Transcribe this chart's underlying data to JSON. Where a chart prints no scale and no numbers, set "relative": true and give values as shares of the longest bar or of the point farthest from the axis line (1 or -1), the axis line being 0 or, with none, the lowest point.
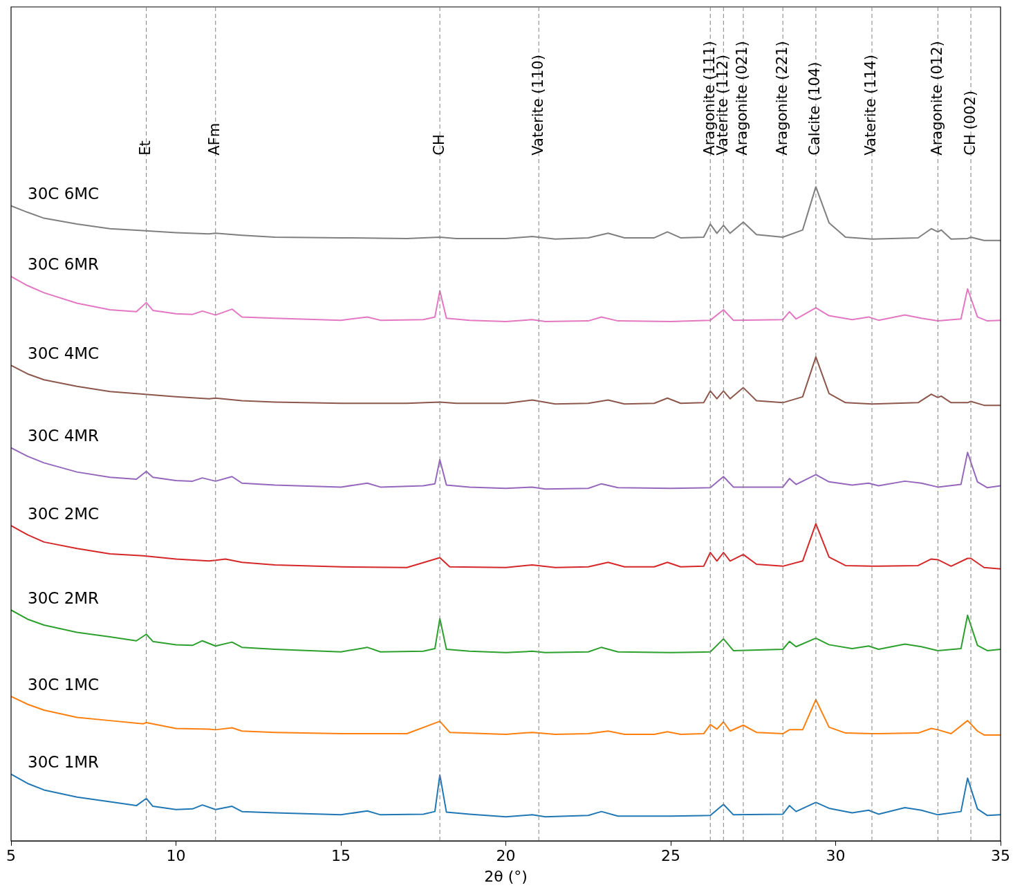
{
  "chart_data": {
    "type": "line",
    "relative": true,
    "xlabel": "2θ (°)",
    "xlim": [
      5,
      35
    ],
    "xticks": [
      5,
      10,
      15,
      20,
      25,
      30,
      35
    ],
    "legend": false,
    "line_style": "solid",
    "series": [
      {
        "name": "30C 1MR",
        "color": "#1f77b4",
        "x": [
          5,
          5.5,
          6,
          7,
          8,
          8.8,
          9.1,
          9.3,
          10,
          10.5,
          10.8,
          11.2,
          11.7,
          12,
          13,
          15,
          15.8,
          16.2,
          17.5,
          17.85,
          18.0,
          18.2,
          18.9,
          20,
          20.8,
          21.2,
          22.5,
          22.9,
          23.4,
          25,
          26.2,
          26.6,
          26.9,
          28.4,
          28.6,
          28.8,
          29.4,
          29.8,
          30.5,
          31.0,
          31.3,
          32.1,
          32.6,
          33.1,
          33.8,
          34.0,
          34.3,
          34.6,
          35
        ],
        "values": [
          0.102,
          0.088,
          0.078,
          0.067,
          0.06,
          0.054,
          0.065,
          0.053,
          0.048,
          0.049,
          0.055,
          0.048,
          0.053,
          0.045,
          0.043,
          0.04,
          0.046,
          0.04,
          0.041,
          0.045,
          0.101,
          0.044,
          0.041,
          0.037,
          0.04,
          0.037,
          0.039,
          0.045,
          0.038,
          0.038,
          0.039,
          0.056,
          0.04,
          0.041,
          0.054,
          0.045,
          0.059,
          0.05,
          0.043,
          0.047,
          0.041,
          0.051,
          0.047,
          0.04,
          0.045,
          0.096,
          0.049,
          0.039,
          0.04
        ]
      },
      {
        "name": "30C 1MC",
        "color": "#ff7f0e",
        "x": [
          5,
          5.5,
          6,
          7,
          8,
          9,
          9.1,
          10,
          11,
          11.2,
          11.7,
          12,
          13,
          15,
          17,
          18,
          18.3,
          20,
          20.8,
          21.5,
          22.5,
          23.1,
          23.6,
          24.5,
          24.9,
          25.3,
          26,
          26.2,
          26.4,
          26.6,
          26.8,
          27.2,
          27.6,
          28.4,
          28.6,
          29.0,
          29.4,
          29.8,
          30.3,
          31.1,
          32.5,
          32.9,
          33.1,
          33.5,
          34.0,
          34.3,
          34.5,
          35
        ],
        "values": [
          0.221,
          0.209,
          0.2,
          0.189,
          0.184,
          0.179,
          0.181,
          0.172,
          0.171,
          0.17,
          0.173,
          0.168,
          0.166,
          0.164,
          0.164,
          0.183,
          0.166,
          0.163,
          0.166,
          0.163,
          0.164,
          0.168,
          0.163,
          0.163,
          0.167,
          0.163,
          0.164,
          0.178,
          0.171,
          0.182,
          0.168,
          0.177,
          0.166,
          0.164,
          0.17,
          0.17,
          0.216,
          0.174,
          0.165,
          0.164,
          0.165,
          0.172,
          0.17,
          0.164,
          0.184,
          0.168,
          0.162,
          0.162
        ]
      },
      {
        "name": "30C 2MR",
        "color": "#2ca02c",
        "x": [
          5,
          5.5,
          6,
          7,
          8,
          8.8,
          9.1,
          9.3,
          10,
          10.5,
          10.8,
          11.2,
          11.7,
          12,
          13,
          15,
          15.8,
          16.2,
          17.5,
          17.85,
          18.0,
          18.2,
          18.9,
          20,
          20.8,
          21.2,
          22.5,
          22.9,
          23.4,
          25,
          26.2,
          26.6,
          26.9,
          28.4,
          28.6,
          28.8,
          29.4,
          29.8,
          30.5,
          31.0,
          31.3,
          32.1,
          32.6,
          33.1,
          33.8,
          34.0,
          34.3,
          34.6,
          35
        ],
        "values": [
          0.353,
          0.339,
          0.33,
          0.319,
          0.312,
          0.306,
          0.316,
          0.305,
          0.3,
          0.299,
          0.306,
          0.298,
          0.304,
          0.296,
          0.293,
          0.289,
          0.296,
          0.289,
          0.29,
          0.294,
          0.34,
          0.293,
          0.29,
          0.288,
          0.29,
          0.288,
          0.289,
          0.296,
          0.289,
          0.288,
          0.289,
          0.309,
          0.291,
          0.293,
          0.305,
          0.297,
          0.31,
          0.3,
          0.294,
          0.298,
          0.293,
          0.301,
          0.297,
          0.291,
          0.294,
          0.345,
          0.299,
          0.291,
          0.293
        ]
      },
      {
        "name": "30C 2MC",
        "color": "#d62728",
        "x": [
          5,
          5.5,
          6,
          7,
          8,
          9,
          10,
          11,
          11.2,
          11.5,
          12,
          13,
          15,
          17,
          18,
          18.3,
          20,
          20.8,
          21.5,
          22.5,
          23.1,
          23.6,
          24.5,
          24.9,
          25.3,
          26,
          26.2,
          26.4,
          26.6,
          26.8,
          27.2,
          27.6,
          28.4,
          29.0,
          29.4,
          29.8,
          30.3,
          31.1,
          32.5,
          32.9,
          33.1,
          33.5,
          34.0,
          34.1,
          34.5,
          35
        ],
        "values": [
          0.482,
          0.468,
          0.457,
          0.447,
          0.439,
          0.436,
          0.431,
          0.428,
          0.429,
          0.431,
          0.426,
          0.422,
          0.419,
          0.418,
          0.433,
          0.419,
          0.418,
          0.422,
          0.418,
          0.419,
          0.426,
          0.419,
          0.419,
          0.426,
          0.419,
          0.42,
          0.441,
          0.428,
          0.441,
          0.428,
          0.438,
          0.423,
          0.42,
          0.428,
          0.485,
          0.434,
          0.421,
          0.42,
          0.421,
          0.431,
          0.43,
          0.42,
          0.432,
          0.432,
          0.418,
          0.416
        ]
      },
      {
        "name": "30C 4MR",
        "color": "#9467bd",
        "x": [
          5,
          5.5,
          6,
          7,
          8,
          8.8,
          9.1,
          9.3,
          10,
          10.5,
          10.8,
          11.2,
          11.7,
          12,
          13,
          15,
          15.8,
          16.2,
          17.5,
          17.85,
          18.0,
          18.2,
          18.9,
          20,
          20.8,
          21.2,
          22.5,
          22.9,
          23.4,
          25,
          26.2,
          26.6,
          26.9,
          28.4,
          28.6,
          28.8,
          29.4,
          29.8,
          30.5,
          31.0,
          31.3,
          32.1,
          32.6,
          33.1,
          33.8,
          34.0,
          34.3,
          34.6,
          35
        ],
        "values": [
          0.601,
          0.588,
          0.578,
          0.564,
          0.556,
          0.553,
          0.565,
          0.556,
          0.551,
          0.55,
          0.555,
          0.55,
          0.557,
          0.547,
          0.544,
          0.541,
          0.547,
          0.541,
          0.543,
          0.546,
          0.583,
          0.544,
          0.541,
          0.539,
          0.541,
          0.538,
          0.539,
          0.546,
          0.54,
          0.539,
          0.54,
          0.557,
          0.541,
          0.541,
          0.554,
          0.545,
          0.56,
          0.549,
          0.544,
          0.547,
          0.543,
          0.55,
          0.547,
          0.541,
          0.545,
          0.594,
          0.549,
          0.54,
          0.543
        ]
      },
      {
        "name": "30C 4MC",
        "color": "#8c564b",
        "x": [
          5,
          5.5,
          6,
          7,
          8,
          9,
          10,
          11,
          11.2,
          12,
          13,
          15,
          17,
          18,
          18.5,
          20,
          20.8,
          21.5,
          22.5,
          23.1,
          23.6,
          24.5,
          24.9,
          25.3,
          26,
          26.2,
          26.4,
          26.6,
          26.8,
          27.2,
          27.6,
          28.4,
          29.0,
          29.4,
          29.8,
          30.3,
          31.1,
          32.5,
          32.9,
          33.1,
          33.2,
          33.5,
          34.0,
          34.1,
          34.5,
          35
        ],
        "values": [
          0.727,
          0.714,
          0.705,
          0.695,
          0.687,
          0.683,
          0.679,
          0.676,
          0.677,
          0.673,
          0.671,
          0.669,
          0.669,
          0.671,
          0.669,
          0.669,
          0.674,
          0.668,
          0.669,
          0.674,
          0.668,
          0.669,
          0.677,
          0.669,
          0.67,
          0.688,
          0.676,
          0.688,
          0.676,
          0.693,
          0.673,
          0.67,
          0.679,
          0.74,
          0.684,
          0.67,
          0.668,
          0.67,
          0.683,
          0.678,
          0.68,
          0.67,
          0.67,
          0.672,
          0.666,
          0.666
        ]
      },
      {
        "name": "30C 6MR",
        "color": "#e377c2",
        "x": [
          5,
          5.5,
          6,
          7,
          8,
          8.8,
          9.1,
          9.3,
          10,
          10.5,
          10.8,
          11.2,
          11.7,
          12,
          13,
          15,
          15.8,
          16.2,
          17.5,
          17.85,
          18.0,
          18.2,
          18.9,
          20,
          20.8,
          21.2,
          22.5,
          22.9,
          23.4,
          25,
          26.2,
          26.6,
          26.9,
          28.4,
          28.6,
          28.8,
          29.4,
          29.8,
          30.5,
          31.0,
          31.3,
          32.1,
          32.6,
          33.1,
          33.8,
          34.0,
          34.3,
          34.6,
          35
        ],
        "values": [
          0.863,
          0.849,
          0.838,
          0.822,
          0.812,
          0.809,
          0.823,
          0.811,
          0.806,
          0.805,
          0.81,
          0.804,
          0.813,
          0.801,
          0.799,
          0.796,
          0.801,
          0.796,
          0.797,
          0.801,
          0.841,
          0.799,
          0.796,
          0.794,
          0.797,
          0.794,
          0.795,
          0.801,
          0.795,
          0.794,
          0.796,
          0.812,
          0.796,
          0.797,
          0.809,
          0.798,
          0.815,
          0.803,
          0.797,
          0.801,
          0.796,
          0.804,
          0.799,
          0.795,
          0.798,
          0.844,
          0.801,
          0.795,
          0.796
        ]
      },
      {
        "name": "30C 6MC",
        "color": "#7f7f7f",
        "x": [
          5,
          5.5,
          6,
          7,
          8,
          9,
          10,
          11,
          11.2,
          12,
          13,
          15,
          17,
          18,
          18.5,
          20,
          20.8,
          21.5,
          22.5,
          23.1,
          23.6,
          24.5,
          24.9,
          25.3,
          26,
          26.2,
          26.4,
          26.6,
          26.8,
          27.2,
          27.6,
          28.4,
          29.0,
          29.4,
          29.8,
          30.3,
          31.1,
          32.5,
          32.9,
          33.1,
          33.2,
          33.5,
          34.0,
          34.1,
          34.5,
          35
        ],
        "values": [
          0.971,
          0.961,
          0.952,
          0.943,
          0.936,
          0.933,
          0.93,
          0.928,
          0.929,
          0.926,
          0.923,
          0.922,
          0.921,
          0.923,
          0.921,
          0.921,
          0.924,
          0.92,
          0.922,
          0.929,
          0.922,
          0.922,
          0.931,
          0.922,
          0.923,
          0.943,
          0.929,
          0.941,
          0.929,
          0.946,
          0.927,
          0.923,
          0.934,
          1.0,
          0.945,
          0.923,
          0.92,
          0.922,
          0.936,
          0.931,
          0.934,
          0.92,
          0.921,
          0.923,
          0.918,
          0.918
        ]
      }
    ],
    "ref_lines": [
      {
        "axis": "x",
        "value": 9.1,
        "label": "Et",
        "color": "#808080",
        "line_style": "dashed"
      },
      {
        "axis": "x",
        "value": 11.2,
        "label": "AFm",
        "color": "#808080",
        "line_style": "dashed"
      },
      {
        "axis": "x",
        "value": 18.0,
        "label": "CH",
        "color": "#808080",
        "line_style": "dashed"
      },
      {
        "axis": "x",
        "value": 21.0,
        "label": "Vaterite (110)",
        "color": "#808080",
        "line_style": "dashed"
      },
      {
        "axis": "x",
        "value": 26.2,
        "label": "Aragonite (111)",
        "color": "#808080",
        "line_style": "dashed"
      },
      {
        "axis": "x",
        "value": 26.6,
        "label": "Vaterite (112)",
        "color": "#808080",
        "line_style": "dashed"
      },
      {
        "axis": "x",
        "value": 27.2,
        "label": "Aragonite (021)",
        "color": "#808080",
        "line_style": "dashed"
      },
      {
        "axis": "x",
        "value": 28.4,
        "label": "Aragonite (221)",
        "color": "#808080",
        "line_style": "dashed"
      },
      {
        "axis": "x",
        "value": 29.4,
        "label": "Calcite (104)",
        "color": "#808080",
        "line_style": "dashed"
      },
      {
        "axis": "x",
        "value": 31.1,
        "label": "Vaterite (114)",
        "color": "#808080",
        "line_style": "dashed"
      },
      {
        "axis": "x",
        "value": 33.1,
        "label": "Aragonite (012)",
        "color": "#808080",
        "line_style": "dashed"
      },
      {
        "axis": "x",
        "value": 34.1,
        "label": "CH (002)",
        "color": "#808080",
        "line_style": "dashed"
      }
    ]
  }
}
